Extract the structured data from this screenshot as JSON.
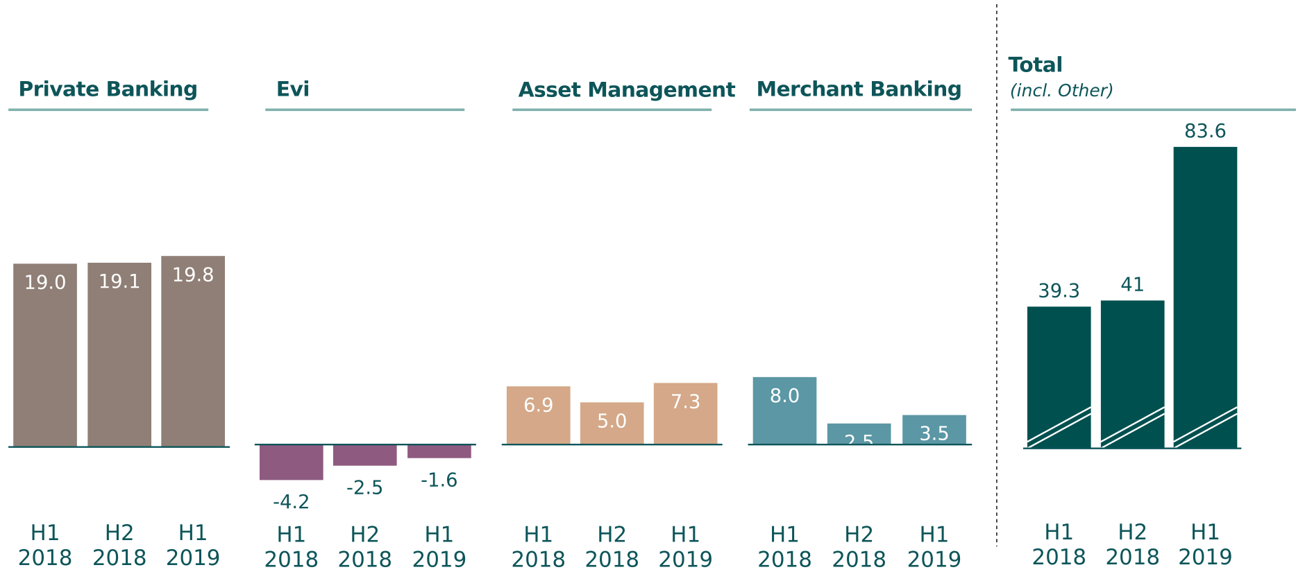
{
  "chart_data": [
    {
      "type": "bar",
      "title": "Private Banking",
      "categories": [
        "H1 2018",
        "H2 2018",
        "H1 2019"
      ],
      "values": [
        19.0,
        19.1,
        19.8
      ],
      "value_labels": [
        "19.0",
        "19.1",
        "19.8"
      ],
      "color": "#8f7f76",
      "ylim": [
        -5,
        33.5
      ]
    },
    {
      "type": "bar",
      "title": "Evi",
      "categories": [
        "H1 2018",
        "H2 2018",
        "H1 2019"
      ],
      "values": [
        -4.2,
        -2.5,
        -1.6
      ],
      "color": "#8e5a80",
      "ylim": [
        -6,
        38
      ]
    },
    {
      "type": "bar",
      "title": "Asset Management",
      "categories": [
        "H1 2018",
        "H2 2018",
        "H1 2019"
      ],
      "values": [
        6.9,
        5.0,
        7.3
      ],
      "value_labels": [
        "6.9",
        "5.0",
        "7.3"
      ],
      "color": "#d4a888",
      "ylim": [
        -6,
        38
      ]
    },
    {
      "type": "bar",
      "title": "Merchant Banking",
      "categories": [
        "H1 2018",
        "H2 2018",
        "H1 2019"
      ],
      "values": [
        8.0,
        2.5,
        3.5
      ],
      "value_labels": [
        "8.0",
        "2.5",
        "3.5"
      ],
      "color": "#5b97a4",
      "ylim": [
        -6,
        38
      ]
    },
    {
      "type": "bar",
      "title": "Total",
      "subtitle": "(incl. Other)",
      "categories": [
        "H1 2018",
        "H2 2018",
        "H1 2019"
      ],
      "values": [
        39.3,
        41.0,
        83.6
      ],
      "color": "#00504f",
      "ylim": [
        -13,
        90
      ]
    }
  ]
}
